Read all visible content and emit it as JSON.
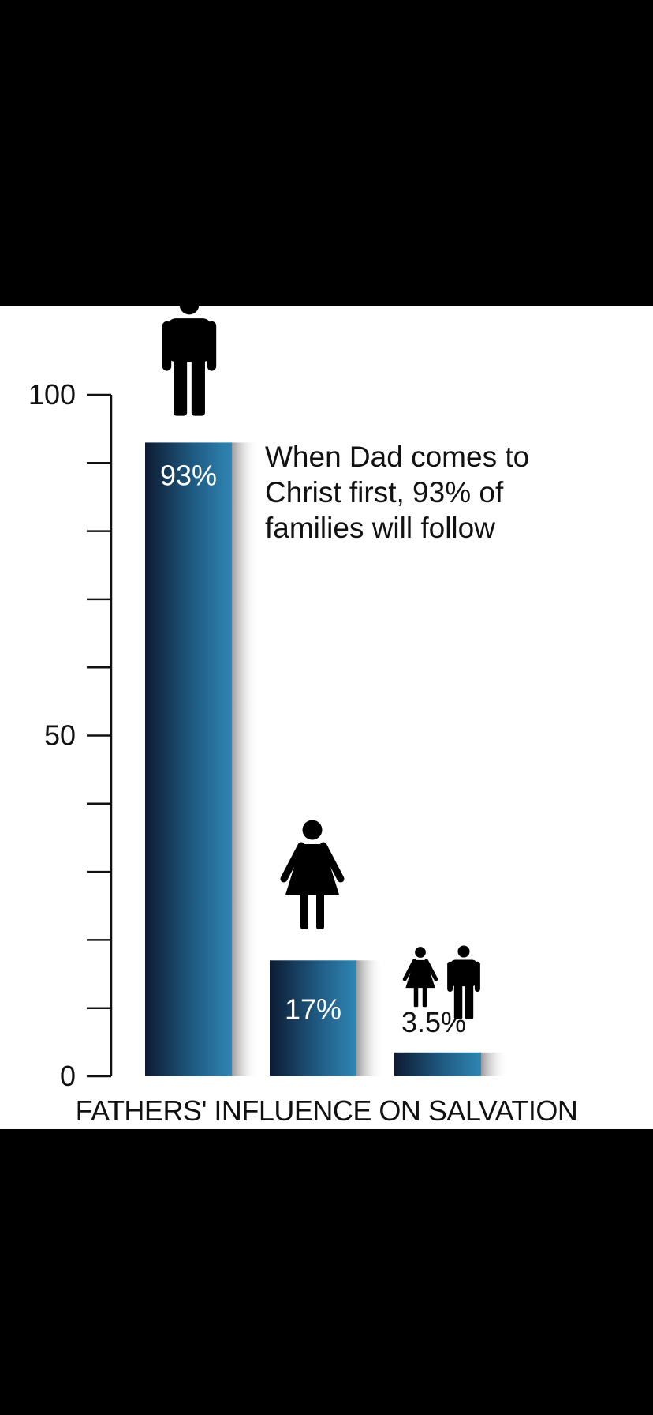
{
  "chart_data": {
    "type": "bar",
    "title": "",
    "xlabel": "FATHERS' INFLUENCE ON SALVATION",
    "ylabel": "",
    "ylim": [
      0,
      100
    ],
    "y_ticks": [
      0,
      50,
      100
    ],
    "minor_tick_step": 10,
    "grid": false,
    "categories": [
      "Father",
      "Mother",
      "Children"
    ],
    "values": [
      93,
      17,
      3.5
    ],
    "data_labels": [
      "93%",
      "17%",
      "3.5%"
    ],
    "icons": [
      "man-icon",
      "woman-icon",
      "children-icon"
    ],
    "annotation": {
      "lines": [
        "When Dad comes to",
        "Christ first, 93% of",
        "families will follow"
      ]
    },
    "colors": {
      "bar_dark": "#0d1b33",
      "bar_light": "#2f86b3",
      "shadow": "#9a9a9a",
      "text": "#111111"
    }
  }
}
